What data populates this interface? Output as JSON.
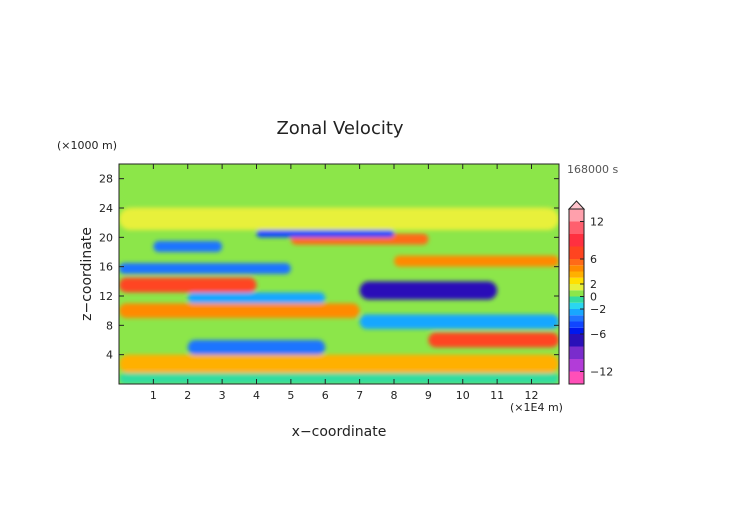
{
  "chart_data": {
    "type": "heatmap",
    "title": "Zonal Velocity",
    "xlabel": "x−coordinate",
    "ylabel": "z−coordinate",
    "x_unit": "(×1E4 m)",
    "y_unit": "(×1000 m)",
    "time_label": "168000 s",
    "xlim": [
      0,
      12.8
    ],
    "ylim": [
      0,
      30
    ],
    "x_ticks": [
      "1",
      "2",
      "3",
      "4",
      "5",
      "6",
      "7",
      "8",
      "9",
      "10",
      "11",
      "12"
    ],
    "y_ticks": [
      "4",
      "8",
      "12",
      "16",
      "20",
      "24",
      "28"
    ],
    "colorbar": {
      "tick_labels": [
        "12",
        "6",
        "2",
        "0",
        "−2",
        "−6",
        "−12"
      ],
      "tick_values": [
        12,
        6,
        2,
        0,
        -2,
        -6,
        -12
      ],
      "levels": [
        -14,
        -12,
        -10,
        -8,
        -6,
        -5,
        -4,
        -3,
        -2,
        -1,
        0,
        1,
        2,
        3,
        4,
        5,
        6,
        8,
        10,
        12,
        14
      ],
      "colors": [
        "#ff4fb8",
        "#b23cd8",
        "#7a2ccc",
        "#2a10b8",
        "#0018ee",
        "#1046ff",
        "#1f74ff",
        "#19a7ff",
        "#2ad6f0",
        "#33dca0",
        "#8ce64a",
        "#e8f03a",
        "#ffe000",
        "#ffb000",
        "#ff8a00",
        "#ff6a18",
        "#ff4420",
        "#ff3040",
        "#ff5f6e",
        "#ffa0ac"
      ],
      "extend": "max"
    },
    "grid": false,
    "layers": [
      {
        "z_min": 0,
        "z_max": 1.5,
        "u": -1,
        "x_range": [
          0,
          12.8
        ]
      },
      {
        "z_min": 1.5,
        "z_max": 4,
        "u": 3,
        "x_range": [
          0,
          12.8
        ]
      },
      {
        "z_min": 4,
        "z_max": 6,
        "u": -4,
        "x_range": [
          2,
          6
        ]
      },
      {
        "z_min": 5,
        "z_max": 7,
        "u": 6,
        "x_range": [
          9,
          12.8
        ]
      },
      {
        "z_min": 7.5,
        "z_max": 9.5,
        "u": -3,
        "x_range": [
          7,
          12.8
        ]
      },
      {
        "z_min": 9,
        "z_max": 11,
        "u": 4,
        "x_range": [
          0,
          7
        ]
      },
      {
        "z_min": 11,
        "z_max": 12.5,
        "u": -3,
        "x_range": [
          2,
          6
        ]
      },
      {
        "z_min": 11.5,
        "z_max": 14,
        "u": -8,
        "x_range": [
          7,
          11
        ]
      },
      {
        "z_min": 12.5,
        "z_max": 14.5,
        "u": 6,
        "x_range": [
          0,
          4
        ]
      },
      {
        "z_min": 15,
        "z_max": 16.5,
        "u": -4,
        "x_range": [
          0,
          5
        ]
      },
      {
        "z_min": 16,
        "z_max": 17.5,
        "u": 4,
        "x_range": [
          8,
          12.8
        ]
      },
      {
        "z_min": 18,
        "z_max": 19.5,
        "u": -4,
        "x_range": [
          1,
          3
        ]
      },
      {
        "z_min": 19,
        "z_max": 20.5,
        "u": 5,
        "x_range": [
          5,
          9
        ]
      },
      {
        "z_min": 20,
        "z_max": 21,
        "u": -5,
        "x_range": [
          4,
          8
        ]
      },
      {
        "z_min": 21,
        "z_max": 24,
        "u": 1,
        "x_range": [
          0,
          12.8
        ]
      },
      {
        "z_min": 24,
        "z_max": 30,
        "u": 0.5,
        "x_range": [
          0,
          12.8
        ]
      }
    ]
  }
}
